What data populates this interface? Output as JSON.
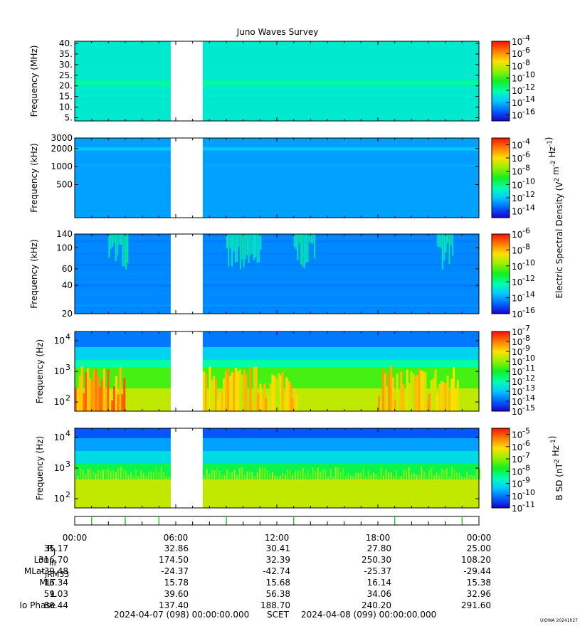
{
  "title": "Juno Waves Survey",
  "chart_data": {
    "type": "heatmap",
    "time_range": {
      "start": "2024-04-07 (098) 00:00:00.000",
      "end": "2024-04-08 (099) 00:00:00.000"
    },
    "data_gap": {
      "start_hours": 5.7,
      "end_hours": 7.6
    },
    "panels": [
      {
        "ylabel": "Frequency (MHz)",
        "scale": "linear",
        "ylim": [
          3.5,
          41
        ],
        "yticks": [
          {
            "v": 5,
            "label": "5."
          },
          {
            "v": 10,
            "label": "10."
          },
          {
            "v": 15,
            "label": "15."
          },
          {
            "v": 20,
            "label": "20."
          },
          {
            "v": 25,
            "label": "25."
          },
          {
            "v": 30,
            "label": "30."
          },
          {
            "v": 35,
            "label": "35."
          },
          {
            "v": 40,
            "label": "40."
          }
        ],
        "background_level": -12.8,
        "bands": [
          {
            "from": 20.5,
            "to": 22.5,
            "level": -11.9
          }
        ],
        "colorbar": {
          "range": [
            -17,
            -4
          ],
          "labels": [
            "10",
            "10",
            "10",
            "10",
            "10",
            "10",
            "10"
          ],
          "exponents": [
            "-4",
            "-6",
            "-8",
            "-10",
            "-12",
            "-14",
            "-16"
          ],
          "exp_values": [
            -4,
            -6,
            -8,
            -10,
            -12,
            -14,
            -16
          ]
        }
      },
      {
        "ylabel": "Frequency (kHz)",
        "scale": "log",
        "ylim": [
          140,
          3000
        ],
        "yticks": [
          {
            "v": 500,
            "label": "500"
          },
          {
            "v": 1000,
            "label": "1000"
          },
          {
            "v": 2000,
            "label": "2000"
          },
          {
            "v": 3000,
            "label": "3000"
          }
        ],
        "background_level": -12.6,
        "bands": [
          {
            "from": 1850,
            "to": 2100,
            "level": -12.0
          }
        ],
        "colorbar": {
          "range": [
            -15,
            -3
          ],
          "labels": [
            "10",
            "10",
            "10",
            "10",
            "10",
            "10"
          ],
          "exponents": [
            "-4",
            "-6",
            "-8",
            "-10",
            "-12",
            "-14"
          ],
          "exp_values": [
            -4,
            -6,
            -8,
            -10,
            -12,
            -14
          ]
        }
      },
      {
        "ylabel": "Frequency (kHz)",
        "scale": "log",
        "ylim": [
          20,
          140
        ],
        "yticks": [
          {
            "v": 20,
            "label": "20"
          },
          {
            "v": 40,
            "label": "40"
          },
          {
            "v": 60,
            "label": "60"
          },
          {
            "v": 100,
            "label": "100"
          },
          {
            "v": 140,
            "label": "140"
          }
        ],
        "background_level": -14.3,
        "bands": [],
        "colorbar": {
          "range": [
            -16,
            -6
          ],
          "labels": [
            "10",
            "10",
            "10",
            "10",
            "10",
            "10"
          ],
          "exponents": [
            "-6",
            "-8",
            "-10",
            "-12",
            "-14",
            "-16"
          ],
          "exp_values": [
            -6,
            -8,
            -10,
            -12,
            -14,
            -16
          ]
        }
      },
      {
        "ylabel": "Frequency (Hz)",
        "scale": "log",
        "ylim": [
          50,
          20000
        ],
        "yticks": [
          {
            "v": 100,
            "label": "10",
            "exp": "2"
          },
          {
            "v": 1000,
            "label": "10",
            "exp": "3"
          },
          {
            "v": 10000,
            "label": "10",
            "exp": "4"
          }
        ],
        "background_level": -12.0,
        "bands": [],
        "colorbar": {
          "range": [
            -15,
            -7
          ],
          "labels": [
            "10",
            "10",
            "10",
            "10",
            "10",
            "10",
            "10",
            "10",
            "10"
          ],
          "exponents": [
            "-7",
            "-8",
            "-9",
            "-10",
            "-11",
            "-12",
            "-13",
            "-14",
            "-15"
          ],
          "exp_values": [
            -7,
            -8,
            -9,
            -10,
            -11,
            -12,
            -13,
            -14,
            -15
          ]
        }
      },
      {
        "ylabel": "Frequency (Hz)",
        "scale": "log",
        "ylim": [
          50,
          20000
        ],
        "yticks": [
          {
            "v": 100,
            "label": "10",
            "exp": "2"
          },
          {
            "v": 1000,
            "label": "10",
            "exp": "3"
          },
          {
            "v": 10000,
            "label": "10",
            "exp": "4"
          }
        ],
        "background_level": -9.0,
        "bands": [],
        "colorbar": {
          "range": [
            -11,
            -4.5
          ],
          "labels": [
            "10",
            "10",
            "10",
            "10",
            "10",
            "10",
            "10"
          ],
          "exponents": [
            "-5",
            "-6",
            "-7",
            "-8",
            "-9",
            "-10",
            "-11"
          ],
          "exp_values": [
            -5,
            -6,
            -7,
            -8,
            -9,
            -10,
            -11
          ]
        }
      }
    ],
    "electric_colorbar_label": {
      "main": "Electric Spectral Density (V",
      "sup1": "2",
      "mid": " m",
      "sup2": "-2",
      "mid2": " Hz",
      "sup3": "-1",
      "end": ")"
    },
    "magnetic_colorbar_label": {
      "main": "B SD (nT",
      "sup1": "2",
      "mid": " Hz",
      "sup2": "-1",
      "end": ")"
    },
    "time_ticks": [
      "00:00",
      "06:00",
      "12:00",
      "18:00",
      "00:00"
    ],
    "ephemeris": [
      {
        "label": "R",
        "sub": "J",
        "values": [
          "35.17",
          "32.86",
          "30.41",
          "27.80",
          "25.00"
        ]
      },
      {
        "label": "Lon",
        "sub": "III",
        "values": [
          "316.70",
          "174.50",
          "32.39",
          "250.30",
          "108.20"
        ]
      },
      {
        "label": "MLat",
        "sub": "JRM33",
        "values": [
          "-39.48",
          "-24.37",
          "-42.74",
          "-25.37",
          "-29.44"
        ]
      },
      {
        "label": "MLT",
        "sub": "",
        "values": [
          "16.34",
          "15.78",
          "15.68",
          "16.14",
          "15.38"
        ]
      },
      {
        "label": "L",
        "sub": "",
        "values": [
          "59.03",
          "39.60",
          "56.38",
          "34.06",
          "32.96"
        ]
      },
      {
        "label": "Io Phase",
        "sub": "",
        "values": [
          "86.44",
          "137.40",
          "188.70",
          "240.20",
          "291.60"
        ]
      }
    ]
  },
  "footer": {
    "start": "2024-04-07 (098) 00:00:00.000",
    "scet": "SCET",
    "end": "2024-04-08 (099) 00:00:00.000",
    "credit": "UIOWA 20241027"
  }
}
